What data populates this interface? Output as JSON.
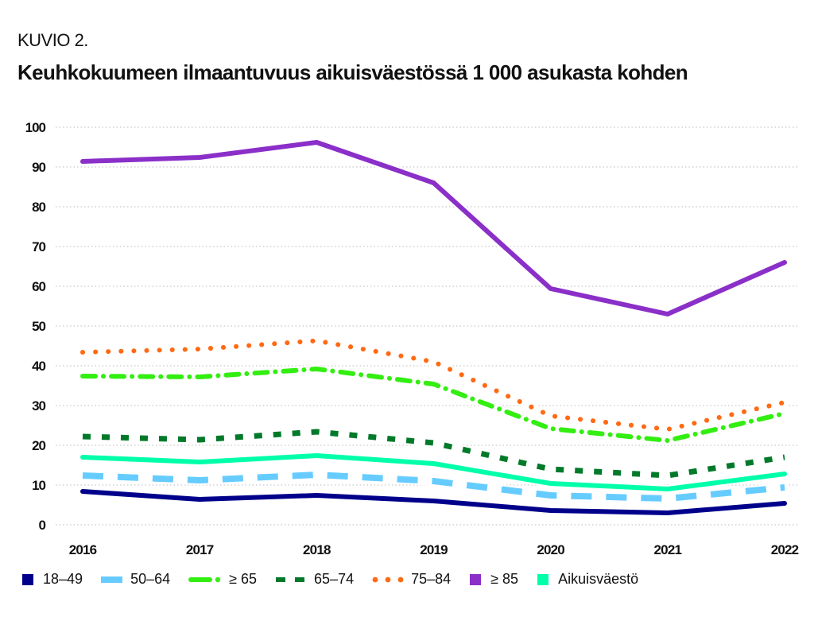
{
  "figure_label": "KUVIO 2.",
  "title": "Keuhkokuumeen ilmaantuvuus aikuisväestössä 1 000 asukasta kohden",
  "chart_data": {
    "type": "line",
    "title": "Keuhkokuumeen ilmaantuvuus aikuisväestössä 1 000 asukasta kohden",
    "xlabel": "",
    "ylabel": "",
    "x": [
      "2016",
      "2017",
      "2018",
      "2019",
      "2020",
      "2021",
      "2022"
    ],
    "ylim": [
      0,
      100
    ],
    "yticks": [
      0,
      10,
      20,
      30,
      40,
      50,
      60,
      70,
      80,
      90,
      100
    ],
    "grid": "horizontal dotted",
    "legend_position": "bottom",
    "series": [
      {
        "name": "18–49",
        "color": "#00008b",
        "style": "solid",
        "values": [
          8.4,
          6.4,
          7.4,
          6.0,
          3.6,
          3.0,
          5.4
        ]
      },
      {
        "name": "50–64",
        "color": "#66ccff",
        "style": "dashed",
        "values": [
          12.4,
          11.2,
          12.6,
          11.0,
          7.4,
          6.6,
          9.4
        ]
      },
      {
        "name": "≥ 65",
        "color": "#33ee11",
        "style": "dashdot",
        "values": [
          37.4,
          37.2,
          39.2,
          35.4,
          24.2,
          21.2,
          28.0
        ]
      },
      {
        "name": "65–74",
        "color": "#007a2a",
        "style": "shortdash",
        "values": [
          22.2,
          21.4,
          23.4,
          20.6,
          14.0,
          12.4,
          17.0
        ]
      },
      {
        "name": "75–84",
        "color": "#ff6a13",
        "style": "dotted",
        "values": [
          43.4,
          44.2,
          46.3,
          41.0,
          27.4,
          24.0,
          30.8
        ]
      },
      {
        "name": "≥ 85",
        "color": "#8b2fc9",
        "style": "solid",
        "values": [
          91.4,
          92.4,
          96.2,
          86.0,
          59.4,
          53.0,
          66.0
        ]
      },
      {
        "name": "Aikuisväestö",
        "color": "#00ffaa",
        "style": "solid",
        "values": [
          17.0,
          15.8,
          17.4,
          15.4,
          10.4,
          9.0,
          12.8
        ]
      }
    ]
  }
}
